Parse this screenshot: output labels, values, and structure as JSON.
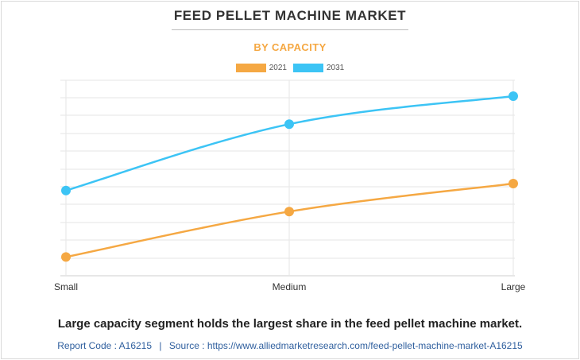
{
  "header": {
    "title": "FEED PELLET MACHINE MARKET",
    "subtitle": "BY CAPACITY"
  },
  "colors": {
    "series_2021": "#f5a843",
    "series_2031": "#3cc4f5",
    "subtitle": "#f5a843",
    "footer_text": "#2f5f9e"
  },
  "chart_data": {
    "type": "line",
    "title": "FEED PELLET MACHINE MARKET",
    "subtitle": "BY CAPACITY",
    "categories": [
      "Small",
      "Medium",
      "Large"
    ],
    "series": [
      {
        "name": "2021",
        "values": [
          0.8,
          3.4,
          5.0
        ]
      },
      {
        "name": "2031",
        "values": [
          4.6,
          8.4,
          10.0
        ]
      }
    ],
    "xlabel": "",
    "ylabel": "",
    "ylim": [
      0,
      10
    ],
    "grid": true,
    "legend": "top-center",
    "y_tick_labels_shown": false
  },
  "caption": "Large capacity segment holds the largest share in the feed pellet machine market.",
  "footer": {
    "report_code": "Report Code : A16215",
    "separator": "|",
    "source": "Source : https://www.alliedmarketresearch.com/feed-pellet-machine-market-A16215"
  }
}
